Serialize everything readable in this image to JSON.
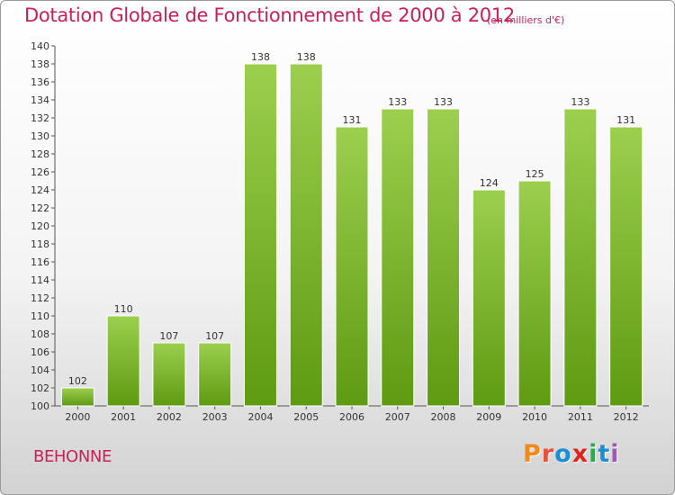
{
  "title": "Dotation Globale de Fonctionnement de 2000 à 2012",
  "unit_note": "(en milliers d'€)",
  "place": "BEHONNE",
  "brand": {
    "text": "Proxiti",
    "colors": [
      "#f08a1c",
      "#e94f3a",
      "#1a8fd6",
      "#e2231a",
      "#2fa84f",
      "#1a8fd6",
      "#9c5ab5"
    ]
  },
  "chart_data": {
    "type": "bar",
    "title": "Dotation Globale de Fonctionnement de 2000 à 2012",
    "xlabel": "",
    "ylabel": "",
    "categories": [
      "2000",
      "2001",
      "2002",
      "2003",
      "2004",
      "2005",
      "2006",
      "2007",
      "2008",
      "2009",
      "2010",
      "2011",
      "2012"
    ],
    "values": [
      102,
      110,
      107,
      107,
      138,
      138,
      131,
      133,
      133,
      124,
      125,
      133,
      131
    ],
    "ylim": [
      100,
      140
    ],
    "ytick_step": 2,
    "grid": false,
    "data_labels": true,
    "bar_color_top": "#9ccf4e",
    "bar_color_bottom": "#5e9a12"
  }
}
